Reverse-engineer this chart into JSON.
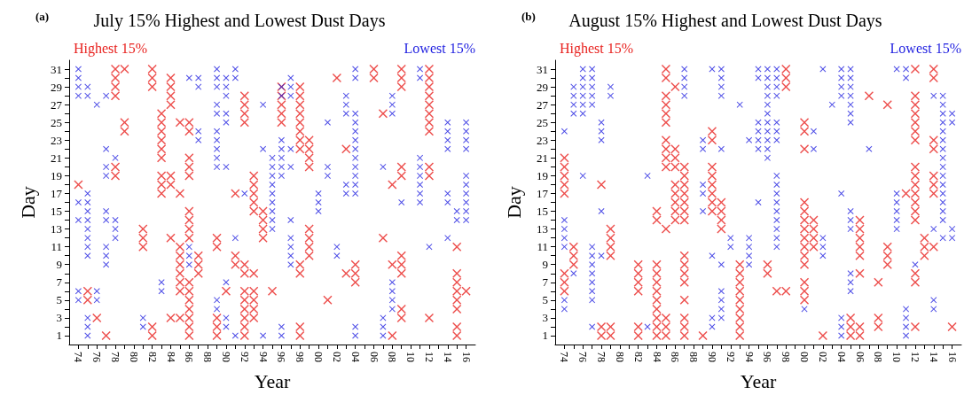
{
  "chart_data": [
    {
      "type": "scatter",
      "title": "July 15% Highest and Lowest Dust Days",
      "annotations": [
        "(a)"
      ],
      "xlabel": "Year",
      "ylabel": "Day",
      "legend": "top",
      "marker": "cross",
      "xlim": [
        1973,
        2017
      ],
      "ylim": [
        0,
        32
      ],
      "xticks": [
        {
          "value": 1974,
          "label": "74"
        },
        {
          "value": 1975,
          "label": null
        },
        {
          "value": 1976,
          "label": "76"
        },
        {
          "value": 1977,
          "label": null
        },
        {
          "value": 1978,
          "label": "78"
        },
        {
          "value": 1979,
          "label": null
        },
        {
          "value": 1980,
          "label": "80"
        },
        {
          "value": 1981,
          "label": null
        },
        {
          "value": 1982,
          "label": "82"
        },
        {
          "value": 1983,
          "label": null
        },
        {
          "value": 1984,
          "label": "84"
        },
        {
          "value": 1985,
          "label": null
        },
        {
          "value": 1986,
          "label": "86"
        },
        {
          "value": 1987,
          "label": null
        },
        {
          "value": 1988,
          "label": "88"
        },
        {
          "value": 1989,
          "label": null
        },
        {
          "value": 1990,
          "label": "90"
        },
        {
          "value": 1991,
          "label": null
        },
        {
          "value": 1992,
          "label": "92"
        },
        {
          "value": 1993,
          "label": null
        },
        {
          "value": 1994,
          "label": "94"
        },
        {
          "value": 1995,
          "label": null
        },
        {
          "value": 1996,
          "label": "96"
        },
        {
          "value": 1997,
          "label": null
        },
        {
          "value": 1998,
          "label": "98"
        },
        {
          "value": 1999,
          "label": null
        },
        {
          "value": 2000,
          "label": "00"
        },
        {
          "value": 2001,
          "label": null
        },
        {
          "value": 2002,
          "label": "02"
        },
        {
          "value": 2003,
          "label": null
        },
        {
          "value": 2004,
          "label": "04"
        },
        {
          "value": 2005,
          "label": null
        },
        {
          "value": 2006,
          "label": "06"
        },
        {
          "value": 2007,
          "label": null
        },
        {
          "value": 2008,
          "label": "08"
        },
        {
          "value": 2009,
          "label": null
        },
        {
          "value": 2010,
          "label": "10"
        },
        {
          "value": 2011,
          "label": null
        },
        {
          "value": 2012,
          "label": "12"
        },
        {
          "value": 2013,
          "label": null
        },
        {
          "value": 2014,
          "label": "14"
        },
        {
          "value": 2015,
          "label": null
        },
        {
          "value": 2016,
          "label": "16"
        }
      ],
      "yticks": [
        1,
        {
          "value": 2,
          "label": null
        },
        3,
        {
          "value": 4,
          "label": null
        },
        5,
        {
          "value": 6,
          "label": null
        },
        7,
        {
          "value": 8,
          "label": null
        },
        9,
        {
          "value": 10,
          "label": null
        },
        11,
        {
          "value": 12,
          "label": null
        },
        13,
        {
          "value": 14,
          "label": null
        },
        15,
        {
          "value": 16,
          "label": null
        },
        17,
        {
          "value": 18,
          "label": null
        },
        19,
        {
          "value": 20,
          "label": null
        },
        21,
        {
          "value": 22,
          "label": null
        },
        23,
        {
          "value": 24,
          "label": null
        },
        25,
        {
          "value": 26,
          "label": null
        },
        27,
        {
          "value": 28,
          "label": null
        },
        29,
        {
          "value": 30,
          "label": null
        },
        31
      ],
      "series": [
        {
          "name": "Highest 15%",
          "color": "#e8221f",
          "x": [
            1974,
            1975,
            1975,
            1976,
            1977,
            1978,
            1978,
            1978,
            1978,
            1978,
            1978,
            1979,
            1979,
            1979,
            1981,
            1981,
            1981,
            1982,
            1982,
            1982,
            1982,
            1982,
            1983,
            1983,
            1983,
            1983,
            1983,
            1983,
            1983,
            1983,
            1983,
            1984,
            1984,
            1984,
            1984,
            1984,
            1984,
            1984,
            1984,
            1985,
            1985,
            1985,
            1985,
            1985,
            1985,
            1985,
            1985,
            1985,
            1986,
            1986,
            1986,
            1986,
            1986,
            1986,
            1986,
            1986,
            1986,
            1986,
            1986,
            1986,
            1986,
            1986,
            1986,
            1986,
            1987,
            1987,
            1987,
            1989,
            1989,
            1989,
            1989,
            1989,
            1990,
            1991,
            1991,
            1991,
            1992,
            1992,
            1992,
            1992,
            1992,
            1992,
            1992,
            1992,
            1992,
            1992,
            1992,
            1992,
            1993,
            1993,
            1993,
            1993,
            1993,
            1993,
            1993,
            1993,
            1993,
            1993,
            1994,
            1994,
            1994,
            1994,
            1995,
            1996,
            1996,
            1996,
            1996,
            1996,
            1998,
            1998,
            1998,
            1998,
            1998,
            1998,
            1998,
            1998,
            1998,
            1998,
            1998,
            1998,
            1999,
            1999,
            1999,
            1999,
            1999,
            1999,
            1999,
            1999,
            2001,
            2002,
            2003,
            2003,
            2004,
            2004,
            2004,
            2006,
            2006,
            2007,
            2007,
            2008,
            2008,
            2008,
            2009,
            2009,
            2009,
            2009,
            2009,
            2009,
            2009,
            2009,
            2009,
            2009,
            2012,
            2012,
            2012,
            2012,
            2012,
            2012,
            2012,
            2012,
            2012,
            2012,
            2012,
            2015,
            2015,
            2015,
            2015,
            2015,
            2015,
            2015,
            2015,
            2016
          ],
          "values": [
            18,
            6,
            5,
            3,
            1,
            31,
            30,
            29,
            28,
            20,
            19,
            31,
            25,
            24,
            13,
            12,
            11,
            31,
            30,
            29,
            2,
            1,
            26,
            25,
            24,
            23,
            22,
            21,
            19,
            18,
            17,
            30,
            29,
            28,
            27,
            19,
            18,
            12,
            3,
            25,
            17,
            11,
            10,
            9,
            8,
            7,
            6,
            3,
            25,
            24,
            21,
            20,
            19,
            15,
            14,
            13,
            12,
            7,
            6,
            5,
            4,
            3,
            2,
            1,
            10,
            9,
            8,
            12,
            11,
            3,
            2,
            1,
            6,
            17,
            10,
            9,
            28,
            27,
            26,
            25,
            9,
            8,
            6,
            5,
            4,
            3,
            2,
            1,
            19,
            18,
            17,
            16,
            15,
            8,
            6,
            5,
            4,
            3,
            15,
            14,
            13,
            12,
            6,
            29,
            28,
            27,
            26,
            25,
            29,
            28,
            27,
            26,
            25,
            24,
            23,
            22,
            9,
            8,
            2,
            1,
            23,
            22,
            21,
            20,
            13,
            12,
            11,
            10,
            5,
            30,
            22,
            8,
            9,
            8,
            7,
            31,
            30,
            26,
            12,
            18,
            9,
            1,
            31,
            30,
            29,
            20,
            19,
            10,
            9,
            8,
            4,
            3,
            31,
            30,
            29,
            28,
            27,
            26,
            25,
            24,
            20,
            19,
            3,
            11,
            8,
            7,
            6,
            5,
            4,
            2,
            1,
            6
          ]
        },
        {
          "name": "Lowest 15%",
          "color": "#1f1fe0",
          "x": [
            1974,
            1974,
            1974,
            1974,
            1974,
            1974,
            1974,
            1974,
            1975,
            1975,
            1975,
            1975,
            1975,
            1975,
            1975,
            1975,
            1975,
            1975,
            1975,
            1975,
            1975,
            1976,
            1976,
            1976,
            1977,
            1977,
            1977,
            1977,
            1977,
            1977,
            1977,
            1977,
            1977,
            1978,
            1978,
            1978,
            1978,
            1981,
            1981,
            1983,
            1983,
            1986,
            1986,
            1986,
            1986,
            1987,
            1987,
            1987,
            1987,
            1989,
            1989,
            1989,
            1989,
            1989,
            1989,
            1989,
            1989,
            1989,
            1989,
            1989,
            1989,
            1990,
            1990,
            1990,
            1990,
            1990,
            1990,
            1990,
            1990,
            1990,
            1991,
            1991,
            1991,
            1991,
            1992,
            1994,
            1994,
            1994,
            1995,
            1995,
            1995,
            1995,
            1995,
            1995,
            1995,
            1995,
            1995,
            1996,
            1996,
            1996,
            1996,
            1996,
            1996,
            1996,
            1996,
            1996,
            1997,
            1997,
            1997,
            1997,
            1997,
            1997,
            1997,
            1997,
            1997,
            1997,
            2000,
            2000,
            2000,
            2001,
            2001,
            2001,
            2002,
            2002,
            2003,
            2003,
            2003,
            2003,
            2003,
            2004,
            2004,
            2004,
            2004,
            2004,
            2004,
            2004,
            2004,
            2004,
            2004,
            2004,
            2004,
            2004,
            2004,
            2007,
            2007,
            2007,
            2007,
            2008,
            2008,
            2008,
            2008,
            2008,
            2008,
            2008,
            2009,
            2011,
            2011,
            2011,
            2011,
            2011,
            2011,
            2011,
            2011,
            2012,
            2014,
            2014,
            2014,
            2014,
            2014,
            2014,
            2014,
            2015,
            2015,
            2016,
            2016,
            2016,
            2016,
            2016,
            2016,
            2016,
            2016,
            2016,
            2016
          ],
          "values": [
            31,
            30,
            29,
            28,
            16,
            14,
            6,
            5,
            29,
            28,
            17,
            16,
            15,
            14,
            13,
            12,
            11,
            10,
            3,
            2,
            1,
            27,
            6,
            5,
            28,
            22,
            20,
            19,
            15,
            14,
            11,
            10,
            9,
            21,
            14,
            13,
            12,
            3,
            2,
            7,
            6,
            30,
            11,
            10,
            9,
            30,
            29,
            24,
            23,
            31,
            30,
            29,
            27,
            26,
            24,
            23,
            22,
            21,
            20,
            5,
            4,
            30,
            29,
            28,
            26,
            25,
            20,
            7,
            3,
            2,
            31,
            30,
            12,
            1,
            17,
            27,
            22,
            1,
            21,
            20,
            19,
            18,
            17,
            16,
            15,
            14,
            13,
            29,
            28,
            23,
            22,
            21,
            20,
            19,
            2,
            1,
            30,
            29,
            28,
            22,
            20,
            14,
            12,
            11,
            10,
            9,
            17,
            16,
            15,
            25,
            20,
            19,
            11,
            10,
            28,
            27,
            26,
            18,
            17,
            31,
            30,
            26,
            25,
            24,
            23,
            22,
            21,
            20,
            19,
            18,
            17,
            2,
            1,
            20,
            3,
            2,
            1,
            28,
            27,
            26,
            7,
            6,
            5,
            4,
            16,
            31,
            30,
            21,
            20,
            19,
            18,
            17,
            16,
            11,
            25,
            24,
            23,
            22,
            17,
            16,
            12,
            15,
            14,
            25,
            24,
            23,
            22,
            19,
            18,
            17,
            16,
            15,
            14
          ]
        }
      ]
    },
    {
      "type": "scatter",
      "title": "August 15% Highest and Lowest Dust Days",
      "annotations": [
        "(b)"
      ],
      "xlabel": "Year",
      "ylabel": "Day",
      "legend": "top",
      "marker": "cross",
      "xlim": [
        1973,
        2017
      ],
      "ylim": [
        0,
        32
      ],
      "xticks": [
        {
          "value": 1974,
          "label": "74"
        },
        {
          "value": 1975,
          "label": null
        },
        {
          "value": 1976,
          "label": "76"
        },
        {
          "value": 1977,
          "label": null
        },
        {
          "value": 1978,
          "label": "78"
        },
        {
          "value": 1979,
          "label": null
        },
        {
          "value": 1980,
          "label": "80"
        },
        {
          "value": 1981,
          "label": null
        },
        {
          "value": 1982,
          "label": "82"
        },
        {
          "value": 1983,
          "label": null
        },
        {
          "value": 1984,
          "label": "84"
        },
        {
          "value": 1985,
          "label": null
        },
        {
          "value": 1986,
          "label": "86"
        },
        {
          "value": 1987,
          "label": null
        },
        {
          "value": 1988,
          "label": "88"
        },
        {
          "value": 1989,
          "label": null
        },
        {
          "value": 1990,
          "label": "90"
        },
        {
          "value": 1991,
          "label": null
        },
        {
          "value": 1992,
          "label": "92"
        },
        {
          "value": 1993,
          "label": null
        },
        {
          "value": 1994,
          "label": "94"
        },
        {
          "value": 1995,
          "label": null
        },
        {
          "value": 1996,
          "label": "96"
        },
        {
          "value": 1997,
          "label": null
        },
        {
          "value": 1998,
          "label": "98"
        },
        {
          "value": 1999,
          "label": null
        },
        {
          "value": 2000,
          "label": "00"
        },
        {
          "value": 2001,
          "label": null
        },
        {
          "value": 2002,
          "label": "02"
        },
        {
          "value": 2003,
          "label": null
        },
        {
          "value": 2004,
          "label": "04"
        },
        {
          "value": 2005,
          "label": null
        },
        {
          "value": 2006,
          "label": "06"
        },
        {
          "value": 2007,
          "label": null
        },
        {
          "value": 2008,
          "label": "08"
        },
        {
          "value": 2009,
          "label": null
        },
        {
          "value": 2010,
          "label": "10"
        },
        {
          "value": 2011,
          "label": null
        },
        {
          "value": 2012,
          "label": "12"
        },
        {
          "value": 2013,
          "label": null
        },
        {
          "value": 2014,
          "label": "14"
        },
        {
          "value": 2015,
          "label": null
        },
        {
          "value": 2016,
          "label": "16"
        }
      ],
      "yticks": [
        1,
        {
          "value": 2,
          "label": null
        },
        3,
        {
          "value": 4,
          "label": null
        },
        5,
        {
          "value": 6,
          "label": null
        },
        7,
        {
          "value": 8,
          "label": null
        },
        9,
        {
          "value": 10,
          "label": null
        },
        11,
        {
          "value": 12,
          "label": null
        },
        13,
        {
          "value": 14,
          "label": null
        },
        15,
        {
          "value": 16,
          "label": null
        },
        17,
        {
          "value": 18,
          "label": null
        },
        19,
        {
          "value": 20,
          "label": null
        },
        21,
        {
          "value": 22,
          "label": null
        },
        23,
        {
          "value": 24,
          "label": null
        },
        25,
        {
          "value": 26,
          "label": null
        },
        27,
        {
          "value": 28,
          "label": null
        },
        29,
        {
          "value": 30,
          "label": null
        },
        31
      ],
      "series": [
        {
          "name": "Highest 15%",
          "color": "#e8221f",
          "x": [
            1974,
            1974,
            1974,
            1974,
            1974,
            1974,
            1974,
            1974,
            1975,
            1975,
            1975,
            1978,
            1978,
            1978,
            1979,
            1979,
            1979,
            1979,
            1979,
            1979,
            1982,
            1982,
            1982,
            1982,
            1982,
            1982,
            1984,
            1984,
            1984,
            1984,
            1984,
            1984,
            1984,
            1984,
            1984,
            1984,
            1984,
            1985,
            1985,
            1985,
            1985,
            1985,
            1985,
            1985,
            1985,
            1985,
            1985,
            1985,
            1985,
            1985,
            1985,
            1986,
            1986,
            1986,
            1986,
            1986,
            1986,
            1986,
            1986,
            1986,
            1987,
            1987,
            1987,
            1987,
            1987,
            1987,
            1987,
            1987,
            1987,
            1987,
            1987,
            1987,
            1987,
            1987,
            1987,
            1989,
            1990,
            1990,
            1990,
            1990,
            1990,
            1990,
            1990,
            1990,
            1991,
            1991,
            1991,
            1991,
            1993,
            1993,
            1993,
            1993,
            1993,
            1993,
            1993,
            1993,
            1993,
            1996,
            1996,
            1997,
            1998,
            1998,
            1998,
            1998,
            2000,
            2000,
            2000,
            2000,
            2000,
            2000,
            2000,
            2000,
            2000,
            2000,
            2000,
            2000,
            2000,
            2000,
            2001,
            2001,
            2001,
            2001,
            2002,
            2005,
            2005,
            2005,
            2006,
            2006,
            2006,
            2006,
            2006,
            2006,
            2006,
            2006,
            2007,
            2008,
            2008,
            2008,
            2009,
            2009,
            2009,
            2009,
            2011,
            2012,
            2012,
            2012,
            2012,
            2012,
            2012,
            2012,
            2012,
            2012,
            2012,
            2012,
            2012,
            2012,
            2012,
            2012,
            2012,
            2012,
            2013,
            2013,
            2013,
            2014,
            2014,
            2014,
            2014,
            2014,
            2014,
            2014,
            2014,
            2016
          ],
          "values": [
            21,
            20,
            19,
            18,
            17,
            8,
            7,
            6,
            11,
            10,
            9,
            18,
            2,
            1,
            13,
            12,
            11,
            10,
            2,
            1,
            9,
            8,
            7,
            6,
            2,
            1,
            15,
            14,
            9,
            8,
            7,
            6,
            5,
            4,
            3,
            2,
            1,
            31,
            30,
            28,
            27,
            26,
            25,
            23,
            22,
            21,
            20,
            13,
            3,
            2,
            1,
            29,
            22,
            21,
            20,
            18,
            17,
            16,
            15,
            14,
            20,
            19,
            18,
            17,
            16,
            15,
            14,
            10,
            9,
            8,
            7,
            5,
            3,
            2,
            1,
            1,
            24,
            23,
            20,
            19,
            18,
            17,
            16,
            15,
            16,
            15,
            14,
            13,
            9,
            8,
            7,
            6,
            5,
            4,
            3,
            2,
            1,
            9,
            8,
            6,
            31,
            30,
            29,
            6,
            25,
            24,
            22,
            16,
            15,
            14,
            13,
            12,
            11,
            10,
            9,
            7,
            6,
            5,
            14,
            13,
            12,
            11,
            1,
            3,
            2,
            1,
            14,
            13,
            12,
            11,
            10,
            8,
            2,
            1,
            28,
            7,
            3,
            2,
            27,
            11,
            10,
            9,
            17,
            31,
            28,
            27,
            26,
            25,
            24,
            23,
            20,
            19,
            18,
            17,
            16,
            15,
            14,
            8,
            7,
            2,
            12,
            11,
            10,
            31,
            30,
            23,
            22,
            19,
            18,
            17,
            11,
            2
          ]
        },
        {
          "name": "Lowest 15%",
          "color": "#1f1fe0",
          "x": [
            1974,
            1974,
            1974,
            1974,
            1974,
            1974,
            1974,
            1975,
            1975,
            1975,
            1975,
            1975,
            1976,
            1976,
            1976,
            1976,
            1976,
            1976,
            1976,
            1977,
            1977,
            1977,
            1977,
            1977,
            1977,
            1977,
            1977,
            1977,
            1977,
            1977,
            1977,
            1977,
            1978,
            1978,
            1978,
            1978,
            1978,
            1979,
            1979,
            1983,
            1983,
            1987,
            1987,
            1987,
            1987,
            1989,
            1989,
            1989,
            1989,
            1989,
            1990,
            1990,
            1990,
            1990,
            1991,
            1991,
            1991,
            1991,
            1991,
            1991,
            1991,
            1991,
            1991,
            1991,
            1992,
            1992,
            1993,
            1994,
            1994,
            1994,
            1994,
            1994,
            1995,
            1995,
            1995,
            1995,
            1995,
            1995,
            1995,
            1996,
            1996,
            1996,
            1996,
            1996,
            1996,
            1996,
            1996,
            1996,
            1996,
            1996,
            1997,
            1997,
            1997,
            1997,
            1997,
            1997,
            1997,
            1997,
            1997,
            1997,
            1997,
            1997,
            1997,
            1997,
            1997,
            1997,
            2000,
            2001,
            2001,
            2002,
            2002,
            2002,
            2002,
            2003,
            2004,
            2004,
            2004,
            2004,
            2004,
            2004,
            2004,
            2004,
            2005,
            2005,
            2005,
            2005,
            2005,
            2005,
            2005,
            2005,
            2005,
            2005,
            2005,
            2005,
            2005,
            2007,
            2010,
            2010,
            2010,
            2010,
            2010,
            2010,
            2011,
            2011,
            2011,
            2011,
            2011,
            2011,
            2012,
            2014,
            2014,
            2014,
            2014,
            2015,
            2015,
            2015,
            2015,
            2015,
            2015,
            2015,
            2015,
            2015,
            2015,
            2015,
            2015,
            2015,
            2015,
            2015,
            2015,
            2016,
            2016,
            2016,
            2016
          ],
          "values": [
            24,
            14,
            13,
            12,
            11,
            5,
            4,
            29,
            28,
            27,
            26,
            8,
            31,
            30,
            29,
            28,
            27,
            26,
            19,
            31,
            30,
            29,
            28,
            27,
            11,
            10,
            9,
            8,
            7,
            6,
            5,
            2,
            25,
            24,
            23,
            15,
            10,
            29,
            28,
            19,
            2,
            31,
            30,
            29,
            28,
            23,
            22,
            18,
            17,
            15,
            31,
            10,
            3,
            2,
            31,
            30,
            29,
            28,
            22,
            9,
            6,
            5,
            4,
            3,
            12,
            11,
            27,
            23,
            12,
            11,
            10,
            9,
            31,
            30,
            25,
            24,
            23,
            22,
            16,
            31,
            30,
            29,
            28,
            27,
            26,
            25,
            24,
            23,
            22,
            21,
            31,
            30,
            29,
            28,
            25,
            24,
            23,
            19,
            18,
            17,
            16,
            15,
            14,
            13,
            12,
            11,
            4,
            24,
            22,
            31,
            12,
            11,
            10,
            27,
            31,
            30,
            29,
            28,
            17,
            3,
            2,
            1,
            31,
            30,
            29,
            28,
            27,
            26,
            25,
            15,
            14,
            13,
            8,
            7,
            6,
            22,
            31,
            17,
            16,
            15,
            14,
            13,
            31,
            30,
            4,
            3,
            2,
            1,
            9,
            28,
            13,
            5,
            4,
            28,
            27,
            26,
            25,
            24,
            23,
            22,
            21,
            20,
            19,
            18,
            17,
            16,
            15,
            14,
            12,
            26,
            25,
            13,
            12
          ]
        }
      ]
    }
  ]
}
